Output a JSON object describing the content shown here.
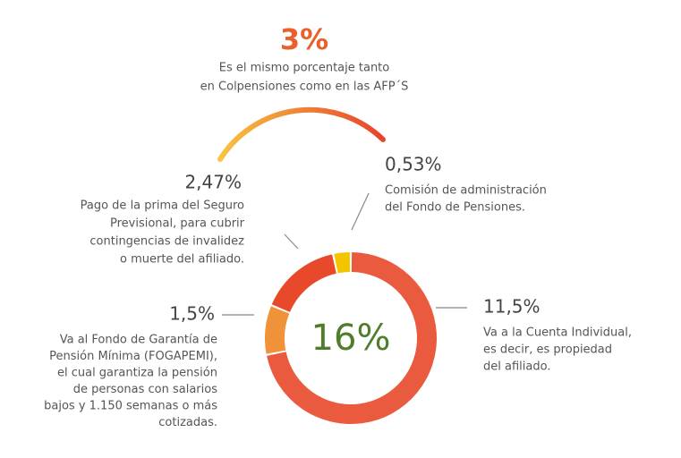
{
  "chart_data": {
    "type": "pie",
    "title": "3%",
    "subtitle": [
      "Es el mismo porcentaje tanto",
      "en Colpensiones como en las AFP´S"
    ],
    "center_label": "16%",
    "values": [
      11.5,
      1.5,
      2.47,
      0.53
    ],
    "value_labels": [
      "11,5%",
      "1,5%",
      "2,47%",
      "0,53%"
    ],
    "colors": [
      "#ea5a3e",
      "#f0923a",
      "#e8492b",
      "#f5c400"
    ],
    "descriptions": [
      [
        "Va a la Cuenta Individual,",
        "es decir, es propiedad",
        "del afiliado."
      ],
      [
        "Va al Fondo de Garantía de",
        "Pensión Mínima (FOGAPEMI),",
        "el cual garantiza la pensión",
        "de personas con salarios",
        "bajos y 1.150 semanas o más",
        "cotizadas."
      ],
      [
        "Pago de la prima del Seguro",
        "Previsional, para cubrir",
        "contingencias de invalidez",
        "o muerte del afiliado."
      ],
      [
        "Comisión de administración",
        "del Fondo de Pensiones."
      ]
    ]
  }
}
